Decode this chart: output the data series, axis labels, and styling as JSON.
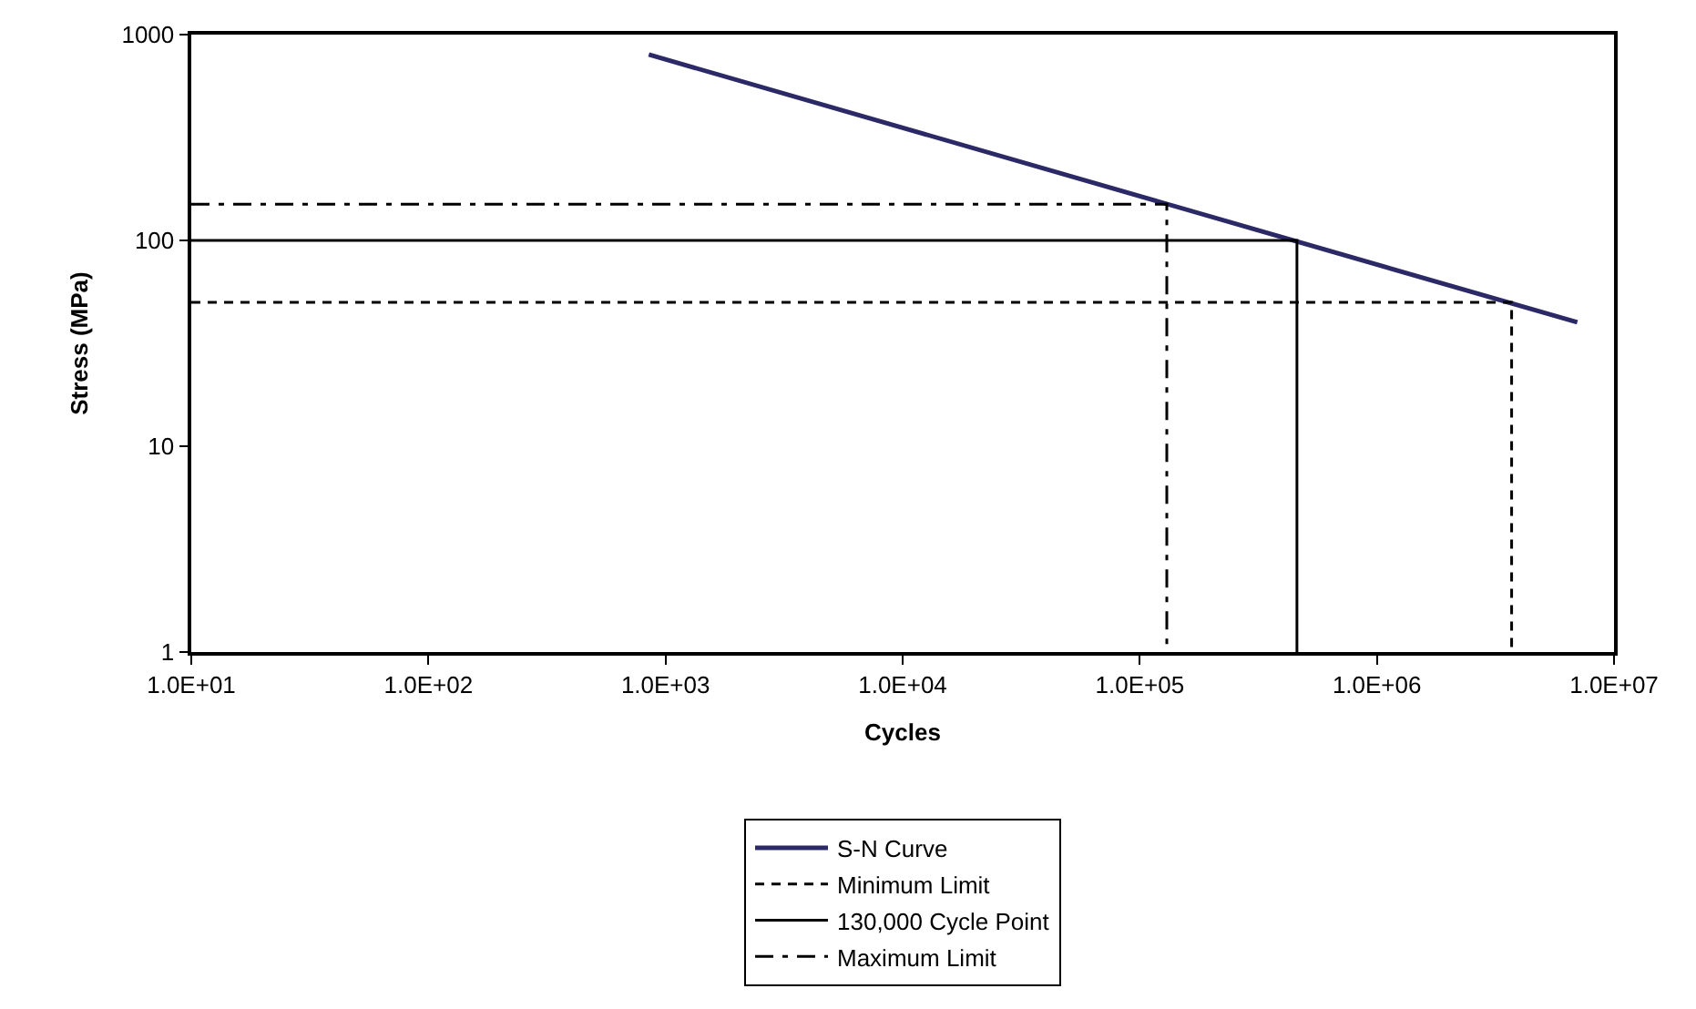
{
  "chart_data": {
    "type": "line",
    "xlabel": "Cycles",
    "ylabel": "Stress (MPa)",
    "log": "xy",
    "legend": "bottom",
    "marker": "none",
    "xlim": [
      10,
      10000000
    ],
    "ylim": [
      1,
      1000
    ],
    "xticks": [
      {
        "value": 10,
        "label": "1.0E+01"
      },
      {
        "value": 100,
        "label": "1.0E+02"
      },
      {
        "value": 1000,
        "label": "1.0E+03"
      },
      {
        "value": 10000,
        "label": "1.0E+04"
      },
      {
        "value": 100000,
        "label": "1.0E+05"
      },
      {
        "value": 1000000,
        "label": "1.0E+06"
      },
      {
        "value": 10000000,
        "label": "1.0E+07"
      }
    ],
    "yticks": [
      1,
      10,
      100,
      1000
    ],
    "series": [
      {
        "name": "S-N Curve",
        "color": "#2b2966",
        "line_style": "solid",
        "x": [
          850,
          7000000
        ],
        "values": [
          800,
          40
        ]
      },
      {
        "name": "Minimum Limit",
        "color": "#000000",
        "line_style": "dashed",
        "x": [
          10,
          3700000,
          3700000
        ],
        "values": [
          50,
          50,
          1
        ]
      },
      {
        "name": "130,000 Cycle Point",
        "color": "#000000",
        "line_style": "solid",
        "x": [
          10,
          460000,
          460000
        ],
        "values": [
          100,
          100,
          1
        ]
      },
      {
        "name": "Maximum Limit",
        "color": "#000000",
        "line_style": "dashdot",
        "x": [
          10,
          130000,
          130000
        ],
        "values": [
          150,
          150,
          1
        ]
      }
    ]
  }
}
